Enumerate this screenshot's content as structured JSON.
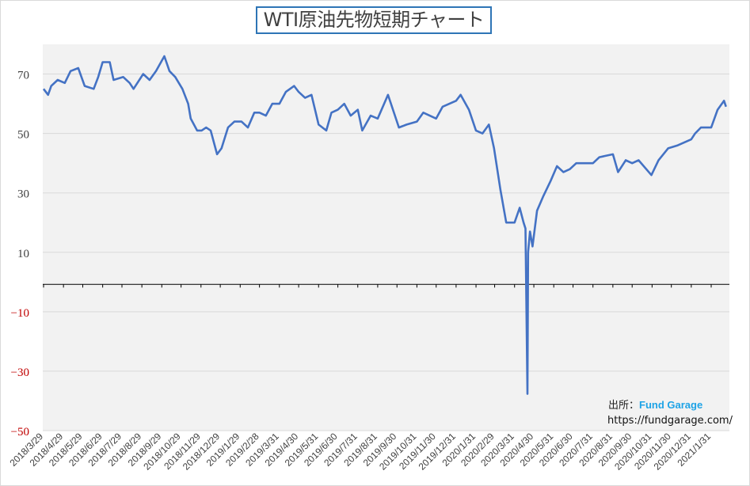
{
  "chart_data": {
    "type": "line",
    "title": "WTI原油先物短期チャート",
    "xlabel": "",
    "ylabel": "",
    "ylim": [
      -50,
      80
    ],
    "yticks": [
      70,
      50,
      30,
      10,
      -10,
      -30,
      -50
    ],
    "negative_tick_color": "#c00000",
    "grid": true,
    "line_color": "#4472c4",
    "zero_line_color": "#000000",
    "xtick_labels": [
      "2018/3/29",
      "2018/4/29",
      "2018/5/29",
      "2018/6/29",
      "2018/7/29",
      "2018/8/29",
      "2018/9/29",
      "2018/10/29",
      "2018/11/29",
      "2018/12/29",
      "2019/1/29",
      "2019/2/28",
      "2019/3/31",
      "2019/4/30",
      "2019/5/31",
      "2019/6/30",
      "2019/7/31",
      "2019/8/31",
      "2019/9/30",
      "2019/10/31",
      "2019/11/30",
      "2019/12/31",
      "2020/1/31",
      "2020/2/29",
      "2020/3/31",
      "2020/4/30",
      "2020/5/31",
      "2020/6/30",
      "2020/7/31",
      "2020/8/31",
      "2020/9/30",
      "2020/10/31",
      "2020/11/30",
      "2020/12/31",
      "2021/1/31"
    ],
    "series": [
      {
        "x": [
          "2018/3/29",
          "2018/4/5",
          "2018/4/10",
          "2018/4/20",
          "2018/5/1",
          "2018/5/10",
          "2018/5/22",
          "2018/6/1",
          "2018/6/15",
          "2018/6/22",
          "2018/6/29",
          "2018/7/10",
          "2018/7/16",
          "2018/7/31",
          "2018/8/10",
          "2018/8/16",
          "2018/8/31",
          "2018/9/10",
          "2018/9/20",
          "2018/10/3",
          "2018/10/11",
          "2018/10/20",
          "2018/10/31",
          "2018/11/9",
          "2018/11/13",
          "2018/11/23",
          "2018/11/30",
          "2018/12/7",
          "2018/12/14",
          "2018/12/24",
          "2018/12/31",
          "2019/1/10",
          "2019/1/20",
          "2019/1/31",
          "2019/2/10",
          "2019/2/20",
          "2019/2/28",
          "2019/3/10",
          "2019/3/20",
          "2019/3/31",
          "2019/4/10",
          "2019/4/23",
          "2019/4/30",
          "2019/5/10",
          "2019/5/20",
          "2019/5/31",
          "2019/6/12",
          "2019/6/20",
          "2019/6/30",
          "2019/7/10",
          "2019/7/20",
          "2019/7/31",
          "2019/8/7",
          "2019/8/20",
          "2019/8/31",
          "2019/9/16",
          "2019/9/30",
          "2019/10/3",
          "2019/10/15",
          "2019/10/31",
          "2019/11/10",
          "2019/11/30",
          "2019/12/10",
          "2019/12/31",
          "2020/1/7",
          "2020/1/20",
          "2020/1/31",
          "2020/2/10",
          "2020/2/20",
          "2020/2/28",
          "2020/3/9",
          "2020/3/18",
          "2020/3/31",
          "2020/4/8",
          "2020/4/14",
          "2020/4/17",
          "2020/4/20",
          "2020/4/21",
          "2020/4/24",
          "2020/4/28",
          "2020/5/5",
          "2020/5/15",
          "2020/5/26",
          "2020/6/5",
          "2020/6/15",
          "2020/6/25",
          "2020/7/5",
          "2020/7/31",
          "2020/8/10",
          "2020/8/31",
          "2020/9/8",
          "2020/9/20",
          "2020/9/30",
          "2020/10/10",
          "2020/10/30",
          "2020/11/10",
          "2020/11/25",
          "2020/12/10",
          "2020/12/31",
          "2021/1/6",
          "2021/1/15",
          "2021/1/31",
          "2021/2/10",
          "2021/2/20",
          "2021/2/23"
        ],
        "y": [
          65,
          63,
          66,
          68,
          67,
          71,
          72,
          66,
          65,
          69,
          74,
          74,
          68,
          69,
          67,
          65,
          70,
          68,
          71,
          76,
          71,
          69,
          65,
          60,
          55,
          51,
          51,
          52,
          51,
          43,
          45,
          52,
          54,
          54,
          52,
          57,
          57,
          56,
          60,
          60,
          64,
          66,
          64,
          62,
          63,
          53,
          51,
          57,
          58,
          60,
          56,
          58,
          51,
          56,
          55,
          63,
          54,
          52,
          53,
          54,
          57,
          55,
          59,
          61,
          63,
          58,
          51,
          50,
          53,
          45,
          31,
          20,
          20,
          25,
          20,
          18,
          -37.6,
          10,
          17,
          12,
          24,
          29,
          34,
          39,
          37,
          38,
          40,
          40,
          42,
          43,
          37,
          41,
          40,
          41,
          36,
          41,
          45,
          46,
          48,
          50,
          52,
          52,
          58,
          61,
          59
        ]
      }
    ]
  },
  "source": {
    "label": "出所：",
    "brand": "Fund Garage",
    "url": "https://fundgarage.com/"
  }
}
